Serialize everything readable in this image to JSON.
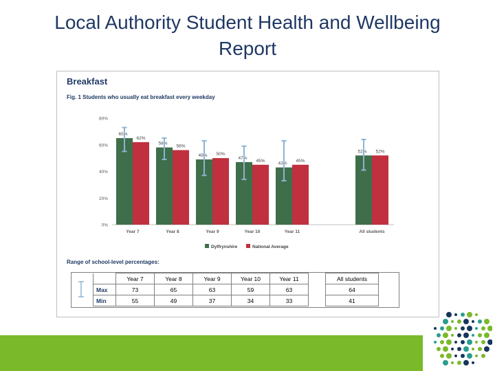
{
  "slide": {
    "title_line1": "Local Authority Student Health and Wellbeing",
    "title_line2": "Report"
  },
  "panel": {
    "heading": "Breakfast",
    "figure_caption": "Fig. 1  Students who usually eat breakfast every weekday"
  },
  "chart_data": {
    "type": "bar",
    "categories": [
      "Year 7",
      "Year 8",
      "Year 9",
      "Year 10",
      "Year 11",
      "All students"
    ],
    "series": [
      {
        "name": "Dyffrynshire",
        "color": "#3f6e4a",
        "values": [
          65,
          58,
          49,
          47,
          43,
          52
        ]
      },
      {
        "name": "National Average",
        "color": "#c0303f",
        "values": [
          62,
          56,
          50,
          45,
          45,
          52
        ]
      }
    ],
    "data_labels": {
      "Dyffrynshire": [
        "65%",
        "58%",
        "49%",
        "47%",
        "43%",
        "52%"
      ],
      "National Average": [
        "62%",
        "56%",
        "50%",
        "45%",
        "45%",
        "52%"
      ]
    },
    "range_series": "Dyffrynshire",
    "range_max": [
      73,
      65,
      63,
      59,
      63,
      64
    ],
    "range_min": [
      55,
      49,
      37,
      34,
      33,
      41
    ],
    "range_color": "#8ab4d6",
    "ylim": [
      0,
      80
    ],
    "yticks": [
      "0%",
      "20%",
      "40%",
      "60%",
      "80%"
    ],
    "xlabel": "",
    "ylabel": "",
    "grid": false,
    "legend_placement": "bottom"
  },
  "range_table": {
    "title": "Range of school-level percentages:",
    "columns": [
      "Year 7",
      "Year 8",
      "Year 9",
      "Year 10",
      "Year 11",
      "All students"
    ],
    "rows": [
      {
        "label": "Max",
        "values": [
          "73",
          "65",
          "63",
          "59",
          "63",
          "64"
        ]
      },
      {
        "label": "Min",
        "values": [
          "55",
          "49",
          "37",
          "34",
          "33",
          "41"
        ]
      }
    ]
  },
  "colors": {
    "title": "#1f3864",
    "footer_green": "#7ab929",
    "logo_navy": "#16365c",
    "logo_green": "#7ab929",
    "logo_teal": "#2a9d8f"
  },
  "icons": {
    "range_marker": "range-bar-icon",
    "logo": "dot-cluster-logo-icon"
  }
}
